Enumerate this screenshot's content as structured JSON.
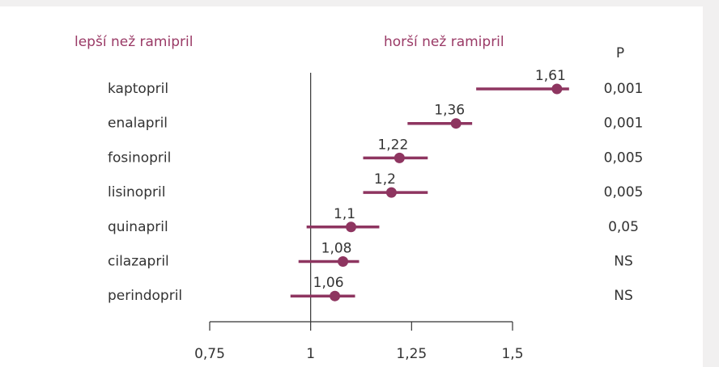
{
  "chart_data": {
    "type": "forest",
    "left_heading": "lepší než ramipril",
    "right_heading": "horší než ramipril",
    "categories": [
      "kaptopril",
      "enalapril",
      "fosinopril",
      "lisinopril",
      "quinapril",
      "cilazapril",
      "perindopril"
    ],
    "values": [
      1.61,
      1.36,
      1.22,
      1.2,
      1.1,
      1.08,
      1.06
    ],
    "value_labels": [
      "1,61",
      "1,36",
      "1,22",
      "1,2",
      "1,1",
      "1,08",
      "1,06"
    ],
    "ci_low": [
      1.41,
      1.24,
      1.13,
      1.13,
      0.99,
      0.97,
      0.95
    ],
    "ci_high": [
      1.64,
      1.4,
      1.29,
      1.29,
      1.17,
      1.12,
      1.11
    ],
    "p_header": "P",
    "p_values": [
      "0,001",
      "0,001",
      "0,005",
      "0,005",
      "0,05",
      "NS",
      "NS"
    ],
    "color": "#8e3560",
    "reference_line": 1,
    "xlim": [
      0.75,
      1.5
    ],
    "xticks": [
      {
        "value": 0.75,
        "label": "0,75"
      },
      1,
      {
        "value": 1.25,
        "label": "1,25"
      },
      {
        "value": 1.5,
        "label": "1,5"
      }
    ]
  }
}
